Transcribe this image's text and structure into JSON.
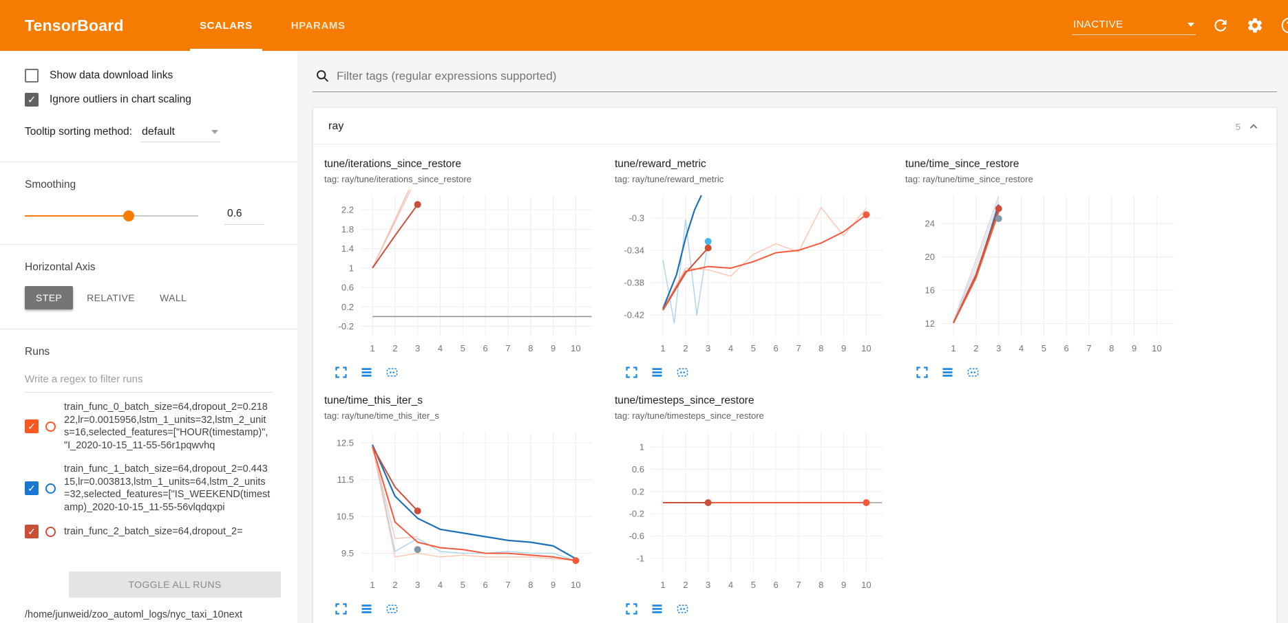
{
  "header": {
    "title": "TensorBoard",
    "tabs": [
      {
        "label": "SCALARS"
      },
      {
        "label": "HPARAMS"
      }
    ],
    "status": "INACTIVE"
  },
  "sidebar": {
    "show_download": {
      "label": "Show data download links",
      "checked": false
    },
    "ignore_outliers": {
      "label": "Ignore outliers in chart scaling",
      "checked": true
    },
    "tooltip_sort": {
      "label": "Tooltip sorting method:",
      "value": "default"
    },
    "smoothing": {
      "label": "Smoothing",
      "value": "0.6"
    },
    "horizontal_axis": {
      "label": "Horizontal Axis",
      "options": [
        {
          "label": "STEP",
          "selected": true
        },
        {
          "label": "RELATIVE",
          "selected": false
        },
        {
          "label": "WALL",
          "selected": false
        }
      ]
    },
    "runs": {
      "label": "Runs",
      "filter_placeholder": "Write a regex to filter runs",
      "items": [
        {
          "name": "train_func_0_batch_size=64,dropout_2=0.21822,lr=0.0015956,lstm_1_units=32,lstm_2_units=16,selected_features=[\"HOUR(timestamp)\", \"I_2020-10-15_11-55-56r1pqwvhq",
          "checked": true,
          "color": "#ff5722"
        },
        {
          "name": "train_func_1_batch_size=64,dropout_2=0.44315,lr=0.003813,lstm_1_units=64,lstm_2_units=32,selected_features=[\"IS_WEEKEND(timestamp)_2020-10-15_11-55-56vlqdqxpi",
          "checked": true,
          "color": "#1976d2"
        },
        {
          "name": "train_func_2_batch_size=64,dropout_2=",
          "checked": true,
          "color": "#c94f38"
        }
      ],
      "toggle_all_label": "TOGGLE ALL RUNS",
      "log_path": "/home/junweid/zoo_automl_logs/nyc_taxi_10next"
    }
  },
  "main": {
    "filter_placeholder": "Filter tags (regular expressions supported)",
    "section": {
      "title": "ray",
      "count": "5"
    }
  },
  "chart_data": [
    {
      "type": "line",
      "title": "tune/iterations_since_restore",
      "tag": "tag: ray/tune/iterations_since_restore",
      "xticks": [
        1,
        2,
        3,
        4,
        5,
        6,
        7,
        8,
        9,
        10
      ],
      "xlim": [
        0.45,
        10.75
      ],
      "yticks": [
        -0.2,
        0.2,
        0.6,
        1,
        1.4,
        1.8,
        2.2
      ],
      "ylim": [
        -0.42,
        2.5
      ],
      "series": [
        {
          "name": "run0-raw",
          "color": "#f7b6a6",
          "width": 1.4,
          "values": [
            [
              1,
              1
            ],
            [
              2,
              2
            ],
            [
              3,
              3
            ]
          ]
        },
        {
          "name": "run2-raw",
          "color": "#f2c6bf",
          "width": 1.4,
          "values": [
            [
              1,
              1
            ],
            [
              2,
              1.95
            ],
            [
              3,
              2.9
            ]
          ]
        },
        {
          "name": "baseline",
          "color": "#8f8f8f",
          "width": 1.6,
          "values": [
            [
              1,
              0
            ],
            [
              10.7,
              0
            ]
          ]
        },
        {
          "name": "run2-smoothed",
          "color": "#c94f38",
          "width": 2,
          "values": [
            [
              1,
              1
            ],
            [
              2,
              1.67
            ],
            [
              3,
              2.31
            ]
          ]
        }
      ],
      "points": [
        {
          "x": 3,
          "y": 2.31,
          "color": "#c94f38"
        }
      ]
    },
    {
      "type": "line",
      "title": "tune/reward_metric",
      "tag": "tag: ray/tune/reward_metric",
      "xticks": [
        1,
        2,
        3,
        4,
        5,
        6,
        7,
        8,
        9,
        10
      ],
      "xlim": [
        0.45,
        10.75
      ],
      "yticks": [
        -0.42,
        -0.38,
        -0.34,
        -0.3
      ],
      "ylim": [
        -0.447,
        -0.272
      ],
      "series": [
        {
          "name": "run1-raw",
          "color": "#a8d4f2",
          "width": 1.4,
          "values": [
            [
              1,
              -0.352
            ],
            [
              1.5,
              -0.43
            ],
            [
              2,
              -0.302
            ],
            [
              2.5,
              -0.42
            ],
            [
              3,
              -0.329
            ]
          ]
        },
        {
          "name": "run0-raw",
          "color": "#ffc4ae",
          "width": 1.4,
          "values": [
            [
              1,
              -0.413
            ],
            [
              2,
              -0.362
            ],
            [
              3,
              -0.364
            ],
            [
              4,
              -0.372
            ],
            [
              5,
              -0.345
            ],
            [
              6,
              -0.332
            ],
            [
              7,
              -0.342
            ],
            [
              8,
              -0.287
            ],
            [
              9,
              -0.322
            ],
            [
              10,
              -0.288
            ]
          ]
        },
        {
          "name": "run1-smoothed",
          "color": "#1c6fb8",
          "width": 2.2,
          "values": [
            [
              1,
              -0.412
            ],
            [
              1.6,
              -0.37
            ],
            [
              2,
              -0.325
            ],
            [
              2.4,
              -0.29
            ],
            [
              2.7,
              -0.272
            ]
          ]
        },
        {
          "name": "run2-smoothed",
          "color": "#c94f38",
          "width": 2,
          "values": [
            [
              1,
              -0.414
            ],
            [
              2,
              -0.368
            ],
            [
              3,
              -0.337
            ]
          ]
        },
        {
          "name": "run0-smoothed",
          "color": "#f4593b",
          "width": 2,
          "values": [
            [
              1,
              -0.413
            ],
            [
              2,
              -0.366
            ],
            [
              3,
              -0.36
            ],
            [
              4,
              -0.362
            ],
            [
              5,
              -0.354
            ],
            [
              6,
              -0.343
            ],
            [
              7,
              -0.34
            ],
            [
              8,
              -0.331
            ],
            [
              9,
              -0.317
            ],
            [
              10,
              -0.296
            ]
          ]
        }
      ],
      "points": [
        {
          "x": 3,
          "y": -0.329,
          "color": "#49b6e8"
        },
        {
          "x": 3,
          "y": -0.337,
          "color": "#c94f38"
        },
        {
          "x": 10,
          "y": -0.296,
          "color": "#f4593b"
        }
      ]
    },
    {
      "type": "line",
      "title": "tune/time_since_restore",
      "tag": "tag: ray/tune/time_since_restore",
      "xticks": [
        1,
        2,
        3,
        4,
        5,
        6,
        7,
        8,
        9,
        10
      ],
      "xlim": [
        0.45,
        10.75
      ],
      "yticks": [
        12,
        16,
        20,
        24
      ],
      "ylim": [
        10.4,
        27.4
      ],
      "series": [
        {
          "name": "raw-a",
          "color": "#d6d0e2",
          "width": 1.4,
          "values": [
            [
              1,
              12.3
            ],
            [
              2,
              19.6
            ],
            [
              3,
              27.3
            ]
          ]
        },
        {
          "name": "raw-b",
          "color": "#e2d8d3",
          "width": 1.4,
          "values": [
            [
              1,
              12.2
            ],
            [
              2,
              19.0
            ],
            [
              3,
              26.7
            ]
          ]
        },
        {
          "name": "raw-c",
          "color": "#cddcec",
          "width": 1.4,
          "values": [
            [
              1,
              12.25
            ],
            [
              2,
              18.4
            ],
            [
              3,
              26.0
            ]
          ]
        },
        {
          "name": "run1-smoothed",
          "color": "#1c6fb8",
          "width": 2.2,
          "values": [
            [
              1,
              12.1
            ],
            [
              2,
              17.6
            ],
            [
              3,
              26.3
            ]
          ]
        },
        {
          "name": "run2-smoothed",
          "color": "#c94f38",
          "width": 2,
          "values": [
            [
              1,
              12.1
            ],
            [
              2,
              17.9
            ],
            [
              3,
              25.8
            ]
          ]
        },
        {
          "name": "run0-smoothed",
          "color": "#f4593b",
          "width": 2,
          "values": [
            [
              1,
              12.05
            ],
            [
              2,
              17.5
            ],
            [
              3,
              25.4
            ]
          ]
        }
      ],
      "points": [
        {
          "x": 3,
          "y": 25.8,
          "color": "#c94f38"
        },
        {
          "x": 3,
          "y": 24.6,
          "color": "#7d96a8"
        }
      ]
    },
    {
      "type": "line",
      "title": "tune/time_this_iter_s",
      "tag": "tag: ray/tune/time_this_iter_s",
      "xticks": [
        1,
        2,
        3,
        4,
        5,
        6,
        7,
        8,
        9,
        10
      ],
      "xlim": [
        0.45,
        10.75
      ],
      "yticks": [
        9.5,
        10.5,
        11.5,
        12.5
      ],
      "ylim": [
        8.95,
        12.8
      ],
      "series": [
        {
          "name": "run1-raw",
          "color": "#a8d4f2",
          "width": 1.4,
          "values": [
            [
              1,
              12.45
            ],
            [
              2,
              9.55
            ],
            [
              3,
              9.9
            ],
            [
              4,
              9.55
            ],
            [
              5,
              9.5
            ],
            [
              6,
              9.5
            ],
            [
              7,
              9.55
            ],
            [
              8,
              9.5
            ],
            [
              9,
              9.5
            ],
            [
              10,
              9.3
            ]
          ]
        },
        {
          "name": "run0-raw",
          "color": "#ffc4ae",
          "width": 1.4,
          "values": [
            [
              1,
              12.4
            ],
            [
              2,
              9.4
            ],
            [
              3,
              9.5
            ],
            [
              4,
              9.4
            ],
            [
              5,
              9.45
            ],
            [
              6,
              9.4
            ],
            [
              7,
              9.4
            ],
            [
              8,
              9.4
            ],
            [
              9,
              9.35
            ],
            [
              10,
              9.3
            ]
          ]
        },
        {
          "name": "run2-raw",
          "color": "#f2c6bf",
          "width": 1.4,
          "values": [
            [
              1,
              12.4
            ],
            [
              2,
              9.9
            ],
            [
              3,
              9.95
            ]
          ]
        },
        {
          "name": "run1-smoothed",
          "color": "#1c6fb8",
          "width": 2.2,
          "values": [
            [
              1,
              12.45
            ],
            [
              2,
              11.05
            ],
            [
              3,
              10.45
            ],
            [
              4,
              10.15
            ],
            [
              5,
              10.05
            ],
            [
              6,
              9.95
            ],
            [
              7,
              9.85
            ],
            [
              8,
              9.8
            ],
            [
              9,
              9.7
            ],
            [
              10,
              9.35
            ]
          ]
        },
        {
          "name": "run2-smoothed",
          "color": "#c94f38",
          "width": 2,
          "values": [
            [
              1,
              12.4
            ],
            [
              2,
              11.3
            ],
            [
              3,
              10.65
            ]
          ]
        },
        {
          "name": "run0-smoothed",
          "color": "#f4593b",
          "width": 2,
          "values": [
            [
              1,
              12.4
            ],
            [
              2,
              10.35
            ],
            [
              3,
              9.8
            ],
            [
              4,
              9.65
            ],
            [
              5,
              9.6
            ],
            [
              6,
              9.5
            ],
            [
              7,
              9.5
            ],
            [
              8,
              9.45
            ],
            [
              9,
              9.4
            ],
            [
              10,
              9.3
            ]
          ]
        }
      ],
      "points": [
        {
          "x": 3,
          "y": 10.65,
          "color": "#c94f38"
        },
        {
          "x": 3,
          "y": 9.6,
          "color": "#7d96a8"
        },
        {
          "x": 10,
          "y": 9.3,
          "color": "#f4593b"
        }
      ]
    },
    {
      "type": "line",
      "title": "tune/timesteps_since_restore",
      "tag": "tag: ray/tune/timesteps_since_restore",
      "xticks": [
        1,
        2,
        3,
        4,
        5,
        6,
        7,
        8,
        9,
        10
      ],
      "xlim": [
        0.45,
        10.75
      ],
      "yticks": [
        -1,
        -0.6,
        -0.2,
        0.2,
        0.6,
        1
      ],
      "ylim": [
        -1.27,
        1.27
      ],
      "series": [
        {
          "name": "baseline",
          "color": "#9e9e9e",
          "width": 1.6,
          "values": [
            [
              1,
              0
            ],
            [
              10.7,
              0
            ]
          ]
        },
        {
          "name": "run0-smoothed",
          "color": "#f4593b",
          "width": 2,
          "values": [
            [
              1,
              0
            ],
            [
              10,
              0
            ]
          ]
        },
        {
          "name": "run2-smoothed",
          "color": "#c94f38",
          "width": 2,
          "values": [
            [
              1,
              0
            ],
            [
              3,
              0
            ]
          ]
        }
      ],
      "points": [
        {
          "x": 3,
          "y": 0,
          "color": "#c94f38"
        },
        {
          "x": 10,
          "y": 0,
          "color": "#f4593b"
        }
      ]
    }
  ]
}
